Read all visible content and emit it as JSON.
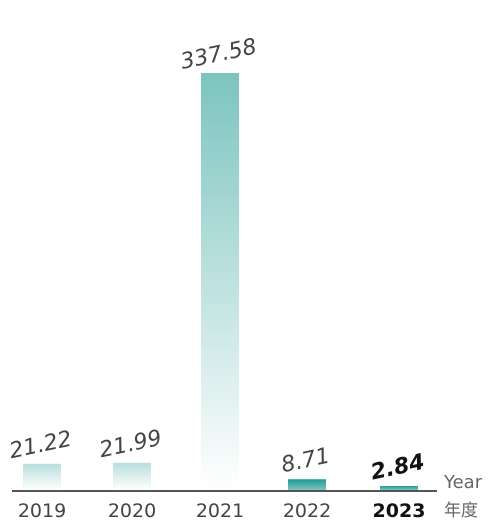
{
  "chart_data": {
    "type": "bar",
    "categories": [
      "2019",
      "2020",
      "2021",
      "2022",
      "2023"
    ],
    "values": [
      21.22,
      21.99,
      337.58,
      8.71,
      2.84
    ],
    "value_labels": [
      "21.22",
      "21.99",
      "337.58",
      "8.71",
      "2.84"
    ],
    "highlight_index": 4,
    "ylim": [
      0,
      337.58
    ],
    "axis_unit_en": "Year",
    "axis_unit_cn": "年度",
    "grid": false,
    "legend": "none",
    "colors": {
      "bar_top": "#7cc4bf",
      "bar_bottom": "#ffffff",
      "bar_highlight": "#1d9a93",
      "axis": "#555555",
      "label": "#444444",
      "label_highlight": "#111111"
    }
  }
}
